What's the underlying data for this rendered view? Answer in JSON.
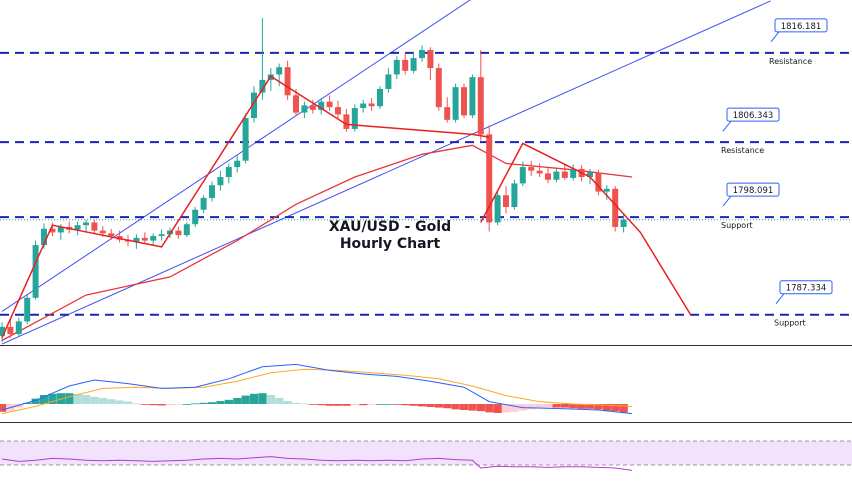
{
  "chart_data": {
    "type": "candlestick",
    "title_line1": "XAU/USD - Gold",
    "title_line2": "Hourly Chart",
    "price_range": [
      1784,
      1822
    ],
    "levels": [
      {
        "price": 1816.181,
        "tag": "1816.181",
        "label": "Resistance"
      },
      {
        "price": 1806.343,
        "tag": "1806.343",
        "label": "Resistance"
      },
      {
        "price": 1798.091,
        "tag": "1798.091",
        "label": "Support"
      },
      {
        "price": 1787.334,
        "tag": "1787.334",
        "label": "Support"
      }
    ],
    "candles": [
      [
        1785.0,
        1786.5,
        1784.3,
        1786.0
      ],
      [
        1786.0,
        1786.8,
        1784.8,
        1785.2
      ],
      [
        1785.2,
        1787.0,
        1784.9,
        1786.6
      ],
      [
        1786.6,
        1789.5,
        1786.3,
        1789.2
      ],
      [
        1789.2,
        1795.5,
        1789.0,
        1795.0
      ],
      [
        1795.0,
        1797.4,
        1794.6,
        1796.8
      ],
      [
        1796.8,
        1797.5,
        1796.0,
        1796.4
      ],
      [
        1796.4,
        1797.3,
        1795.6,
        1797.0
      ],
      [
        1797.0,
        1797.6,
        1796.3,
        1796.7
      ],
      [
        1796.7,
        1797.6,
        1796.1,
        1797.2
      ],
      [
        1797.2,
        1797.8,
        1796.4,
        1797.5
      ],
      [
        1797.5,
        1797.8,
        1796.2,
        1796.6
      ],
      [
        1796.6,
        1797.1,
        1795.9,
        1796.3
      ],
      [
        1796.3,
        1796.8,
        1795.6,
        1796.0
      ],
      [
        1796.0,
        1796.6,
        1795.3,
        1795.6
      ],
      [
        1795.6,
        1796.1,
        1794.9,
        1795.4
      ],
      [
        1795.4,
        1796.2,
        1794.6,
        1795.8
      ],
      [
        1795.8,
        1796.4,
        1795.1,
        1795.5
      ],
      [
        1795.5,
        1796.3,
        1795.0,
        1796.0
      ],
      [
        1796.0,
        1796.7,
        1795.5,
        1796.2
      ],
      [
        1796.2,
        1796.9,
        1795.8,
        1796.6
      ],
      [
        1796.6,
        1797.0,
        1795.7,
        1796.1
      ],
      [
        1796.1,
        1797.5,
        1795.9,
        1797.3
      ],
      [
        1797.3,
        1799.2,
        1797.0,
        1798.9
      ],
      [
        1798.9,
        1800.5,
        1798.5,
        1800.2
      ],
      [
        1800.2,
        1802.0,
        1799.8,
        1801.6
      ],
      [
        1801.6,
        1803.2,
        1801.0,
        1802.5
      ],
      [
        1802.5,
        1804.0,
        1801.8,
        1803.6
      ],
      [
        1803.6,
        1805.0,
        1803.0,
        1804.3
      ],
      [
        1804.3,
        1809.5,
        1804.0,
        1809.0
      ],
      [
        1809.0,
        1812.5,
        1808.5,
        1811.8
      ],
      [
        1811.8,
        1820.0,
        1811.0,
        1813.2
      ],
      [
        1813.2,
        1814.5,
        1812.0,
        1813.8
      ],
      [
        1813.8,
        1815.0,
        1812.5,
        1814.6
      ],
      [
        1814.6,
        1815.3,
        1811.0,
        1811.5
      ],
      [
        1811.5,
        1812.2,
        1809.2,
        1809.6
      ],
      [
        1809.6,
        1810.8,
        1809.0,
        1810.4
      ],
      [
        1810.4,
        1811.0,
        1809.5,
        1809.9
      ],
      [
        1809.9,
        1811.2,
        1809.4,
        1810.8
      ],
      [
        1810.8,
        1811.5,
        1809.8,
        1810.2
      ],
      [
        1810.2,
        1810.9,
        1809.0,
        1809.4
      ],
      [
        1809.4,
        1810.0,
        1807.5,
        1807.8
      ],
      [
        1807.8,
        1810.5,
        1807.5,
        1810.1
      ],
      [
        1810.1,
        1811.0,
        1809.6,
        1810.6
      ],
      [
        1810.6,
        1811.2,
        1809.8,
        1810.3
      ],
      [
        1810.3,
        1812.5,
        1810.0,
        1812.2
      ],
      [
        1812.2,
        1814.5,
        1811.8,
        1813.8
      ],
      [
        1813.8,
        1815.8,
        1813.3,
        1815.4
      ],
      [
        1815.4,
        1816.2,
        1813.8,
        1814.2
      ],
      [
        1814.2,
        1816.3,
        1813.9,
        1815.6
      ],
      [
        1815.6,
        1817.0,
        1815.2,
        1816.5
      ],
      [
        1816.5,
        1816.8,
        1813.2,
        1814.5
      ],
      [
        1814.5,
        1815.0,
        1809.8,
        1810.2
      ],
      [
        1810.2,
        1811.3,
        1808.5,
        1808.8
      ],
      [
        1808.8,
        1812.8,
        1808.5,
        1812.4
      ],
      [
        1812.4,
        1812.8,
        1809.0,
        1809.3
      ],
      [
        1809.3,
        1813.8,
        1809.0,
        1813.5
      ],
      [
        1813.5,
        1816.5,
        1806.5,
        1807.2
      ],
      [
        1807.2,
        1808.2,
        1796.5,
        1797.5
      ],
      [
        1797.5,
        1801.0,
        1797.2,
        1800.5
      ],
      [
        1800.5,
        1801.5,
        1798.5,
        1799.2
      ],
      [
        1799.2,
        1802.2,
        1798.9,
        1801.8
      ],
      [
        1801.8,
        1804.2,
        1801.5,
        1803.6
      ],
      [
        1803.6,
        1804.3,
        1802.6,
        1803.2
      ],
      [
        1803.2,
        1804.0,
        1802.5,
        1802.9
      ],
      [
        1802.9,
        1803.5,
        1801.8,
        1802.2
      ],
      [
        1802.2,
        1803.4,
        1801.9,
        1803.1
      ],
      [
        1803.1,
        1803.9,
        1802.2,
        1802.4
      ],
      [
        1802.4,
        1803.9,
        1802.1,
        1803.4
      ],
      [
        1803.4,
        1803.8,
        1802.0,
        1802.5
      ],
      [
        1802.5,
        1803.4,
        1801.7,
        1803.0
      ],
      [
        1803.0,
        1803.3,
        1800.5,
        1800.9
      ],
      [
        1800.9,
        1801.6,
        1800.0,
        1801.2
      ],
      [
        1801.2,
        1801.5,
        1796.5,
        1797.0
      ],
      [
        1797.0,
        1798.5,
        1796.4,
        1797.8
      ]
    ],
    "ema": [
      [
        0,
        1784.5
      ],
      [
        5,
        1787.0
      ],
      [
        10,
        1789.5
      ],
      [
        20,
        1791.5
      ],
      [
        28,
        1795.5
      ],
      [
        35,
        1799.5
      ],
      [
        42,
        1802.5
      ],
      [
        50,
        1805.0
      ],
      [
        56,
        1806.0
      ],
      [
        60,
        1804.0
      ],
      [
        68,
        1803.3
      ],
      [
        75,
        1802.5
      ]
    ],
    "channel_lines": [
      {
        "from": [
          0,
          1787.7
        ],
        "to": [
          56.2,
          1822.3
        ]
      },
      {
        "from": [
          0,
          1784.1
        ],
        "to": [
          91.5,
          1821.9
        ]
      }
    ],
    "red_lines": [
      {
        "points": [
          [
            0,
            1784.8
          ],
          [
            6,
            1797.2
          ],
          [
            19,
            1794.8
          ],
          [
            32,
            1813.6
          ],
          [
            41,
            1808.3
          ],
          [
            56,
            1807.2
          ],
          [
            58,
            1806.9
          ]
        ]
      },
      {
        "points": [
          [
            57,
            1797.5
          ],
          [
            62,
            1806.2
          ],
          [
            70,
            1802.5
          ],
          [
            76,
            1796.4
          ],
          [
            82,
            1787.3
          ]
        ]
      }
    ],
    "macd": {
      "histogram": [
        -0.65,
        -0.55,
        -0.3,
        0.1,
        0.45,
        0.75,
        0.85,
        0.9,
        0.9,
        0.85,
        0.75,
        0.6,
        0.5,
        0.4,
        0.3,
        0.2,
        0.05,
        -0.05,
        -0.1,
        -0.12,
        -0.1,
        -0.05,
        0.0,
        0.05,
        0.1,
        0.15,
        0.25,
        0.35,
        0.5,
        0.7,
        0.85,
        0.9,
        0.75,
        0.5,
        0.25,
        0.1,
        0.05,
        -0.05,
        -0.1,
        -0.15,
        -0.15,
        -0.15,
        -0.1,
        -0.1,
        -0.05,
        0.0,
        0.0,
        -0.05,
        -0.1,
        -0.15,
        -0.2,
        -0.25,
        -0.3,
        -0.35,
        -0.45,
        -0.5,
        -0.55,
        -0.6,
        -0.7,
        -0.75,
        -0.7,
        -0.65,
        -0.55,
        -0.45,
        -0.35,
        -0.3,
        -0.3,
        -0.3,
        -0.35,
        -0.4,
        -0.4,
        -0.45,
        -0.55,
        -0.6,
        -0.7
      ],
      "macd_line": [
        [
          0,
          -0.5
        ],
        [
          4,
          0.3
        ],
        [
          8,
          1.5
        ],
        [
          11,
          2.0
        ],
        [
          15,
          1.7
        ],
        [
          19,
          1.3
        ],
        [
          23,
          1.4
        ],
        [
          27,
          2.1
        ],
        [
          31,
          3.1
        ],
        [
          35,
          3.3
        ],
        [
          39,
          2.8
        ],
        [
          43,
          2.5
        ],
        [
          47,
          2.3
        ],
        [
          51,
          1.9
        ],
        [
          55,
          1.4
        ],
        [
          58,
          0.2
        ],
        [
          62,
          -0.3
        ],
        [
          67,
          -0.4
        ],
        [
          71,
          -0.5
        ],
        [
          75,
          -0.8
        ]
      ],
      "signal_line": [
        [
          0,
          -0.8
        ],
        [
          4,
          -0.2
        ],
        [
          8,
          0.6
        ],
        [
          12,
          1.3
        ],
        [
          16,
          1.4
        ],
        [
          20,
          1.3
        ],
        [
          24,
          1.4
        ],
        [
          28,
          1.9
        ],
        [
          32,
          2.6
        ],
        [
          36,
          2.9
        ],
        [
          40,
          2.8
        ],
        [
          44,
          2.6
        ],
        [
          48,
          2.4
        ],
        [
          52,
          2.1
        ],
        [
          56,
          1.5
        ],
        [
          60,
          0.7
        ],
        [
          64,
          0.2
        ],
        [
          68,
          0.0
        ],
        [
          72,
          -0.1
        ],
        [
          75,
          -0.2
        ]
      ]
    },
    "rsi": [
      [
        0,
        40
      ],
      [
        2,
        36
      ],
      [
        4,
        38
      ],
      [
        6,
        41
      ],
      [
        8,
        40
      ],
      [
        10,
        38
      ],
      [
        12,
        37
      ],
      [
        14,
        38
      ],
      [
        16,
        37
      ],
      [
        18,
        36
      ],
      [
        20,
        37
      ],
      [
        22,
        38
      ],
      [
        24,
        40
      ],
      [
        26,
        41
      ],
      [
        28,
        40
      ],
      [
        30,
        42
      ],
      [
        32,
        44
      ],
      [
        34,
        41
      ],
      [
        36,
        40
      ],
      [
        38,
        38
      ],
      [
        40,
        37
      ],
      [
        42,
        38
      ],
      [
        44,
        37
      ],
      [
        46,
        38
      ],
      [
        48,
        37
      ],
      [
        50,
        40
      ],
      [
        52,
        41
      ],
      [
        54,
        39
      ],
      [
        56,
        38
      ],
      [
        57,
        25
      ],
      [
        59,
        28
      ],
      [
        61,
        27
      ],
      [
        63,
        27
      ],
      [
        65,
        26
      ],
      [
        67,
        27
      ],
      [
        69,
        27
      ],
      [
        71,
        26
      ],
      [
        73,
        25
      ],
      [
        75,
        21
      ]
    ],
    "colors": {
      "bull": "#26a69a",
      "bear": "#ef5350",
      "level_line": "#1a24b8",
      "channel": "#3f4ff0",
      "pattern": "#e82020",
      "ema": "#e8363a",
      "macd": "#2962ff",
      "signal": "#ffa726",
      "hist_pos_strong": "#26a69a",
      "hist_pos_weak": "#b2dfdb",
      "hist_neg_strong": "#ef5350",
      "hist_neg_weak": "#ffcdd2",
      "rsi": "#b13bd6",
      "rsi_band": "#f0e3fb"
    }
  }
}
